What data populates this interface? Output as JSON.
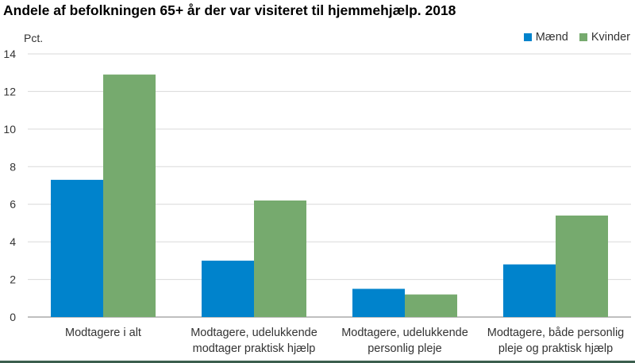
{
  "title": "Andele af befolkningen 65+ år der var visiteret til hjemmehjælp. 2018",
  "unit_label": "Pct.",
  "colors": {
    "series_0": "#0083cc",
    "series_1": "#76aa6e",
    "grid": "#d9d9d9",
    "axis": "#7f7f7f"
  },
  "chart_data": {
    "type": "bar",
    "title": "Andele af befolkningen 65+ år der var visiteret til hjemmehjælp. 2018",
    "ylabel": "Pct.",
    "ylim": [
      0,
      14
    ],
    "yticks": [
      0,
      2,
      4,
      6,
      8,
      10,
      12,
      14
    ],
    "grid": true,
    "legend_position": "top-right",
    "categories": [
      [
        "Modtagere i alt"
      ],
      [
        "Modtagere, udelukkende",
        "modtager praktisk hjælp"
      ],
      [
        "Modtagere, udelukkende",
        "personlig pleje"
      ],
      [
        "Modtagere, både personlig",
        "pleje og praktisk hjælp"
      ]
    ],
    "series": [
      {
        "name": "Mænd",
        "values": [
          7.3,
          3.0,
          1.5,
          2.8
        ]
      },
      {
        "name": "Kvinder",
        "values": [
          12.9,
          6.2,
          1.2,
          5.4
        ]
      }
    ]
  }
}
